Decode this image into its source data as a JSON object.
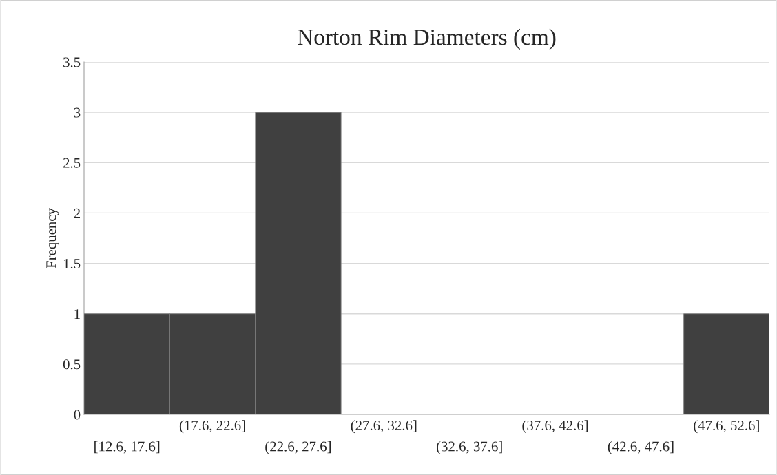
{
  "chart_data": {
    "type": "bar",
    "title": "Norton Rim Diameters (cm)",
    "ylabel": "Frequency",
    "categories": [
      "[12.6, 17.6]",
      "(17.6, 22.6]",
      "(22.6, 27.6]",
      "(27.6, 32.6]",
      "(32.6, 37.6]",
      "(37.6, 42.6]",
      "(42.6, 47.6]",
      "(47.6, 52.6]"
    ],
    "values": [
      1,
      1,
      3,
      0,
      0,
      0,
      0,
      1
    ],
    "color": "#404040",
    "ylim": [
      0,
      3.5
    ],
    "yticks": [
      0,
      0.5,
      1,
      1.5,
      2,
      2.5,
      3,
      3.5
    ],
    "grid": "y"
  }
}
